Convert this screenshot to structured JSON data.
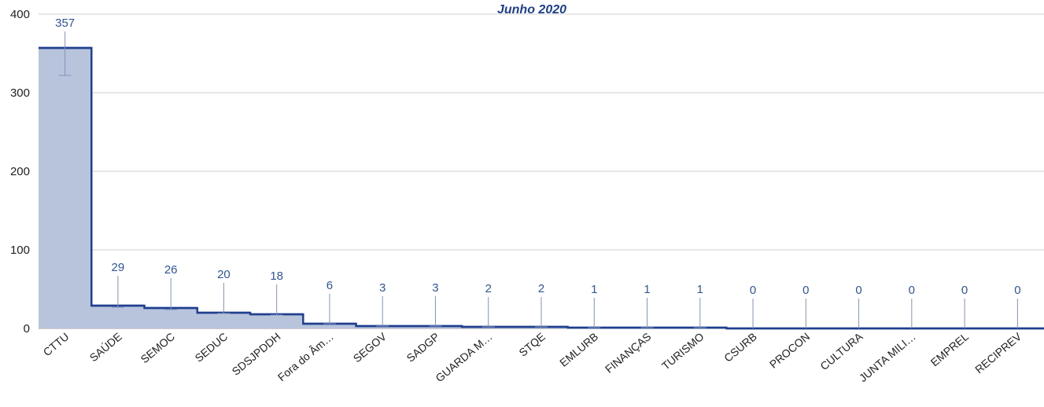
{
  "chart_data": {
    "type": "area",
    "title": "Junho 2020",
    "xlabel": "",
    "ylabel": "",
    "ylim": [
      0,
      400
    ],
    "yticks": [
      "0",
      "100",
      "200",
      "300",
      "400"
    ],
    "grid": true,
    "categories": [
      "CTTU",
      "SAÚDE",
      "SEMOC",
      "SEDUC",
      "SDSJPDDH",
      "Fora do Âm…",
      "SEGOV",
      "SADGP",
      "GUARDA M…",
      "STQE",
      "EMLURB",
      "FINANÇAS",
      "TURISMO",
      "CSURB",
      "PROCON",
      "CULTURA",
      "JUNTA MILI…",
      "EMPREL",
      "RECIPREV"
    ],
    "values": [
      357,
      29,
      26,
      20,
      18,
      6,
      3,
      3,
      2,
      2,
      1,
      1,
      1,
      0,
      0,
      0,
      0,
      0,
      0
    ],
    "data_labels": [
      "357",
      "29",
      "26",
      "20",
      "18",
      "6",
      "3",
      "3",
      "2",
      "2",
      "1",
      "1",
      "1",
      "0",
      "0",
      "0",
      "0",
      "0",
      "0"
    ],
    "error_low": [
      322,
      27,
      24,
      19,
      17,
      6,
      3,
      3,
      2,
      2,
      1,
      1,
      1,
      0,
      0,
      0,
      0,
      0,
      0
    ],
    "colors": {
      "line": "#1f3f8f",
      "fill": "#b8c4dc",
      "label": "#2f5597",
      "whisker": "#7f93bf"
    }
  }
}
